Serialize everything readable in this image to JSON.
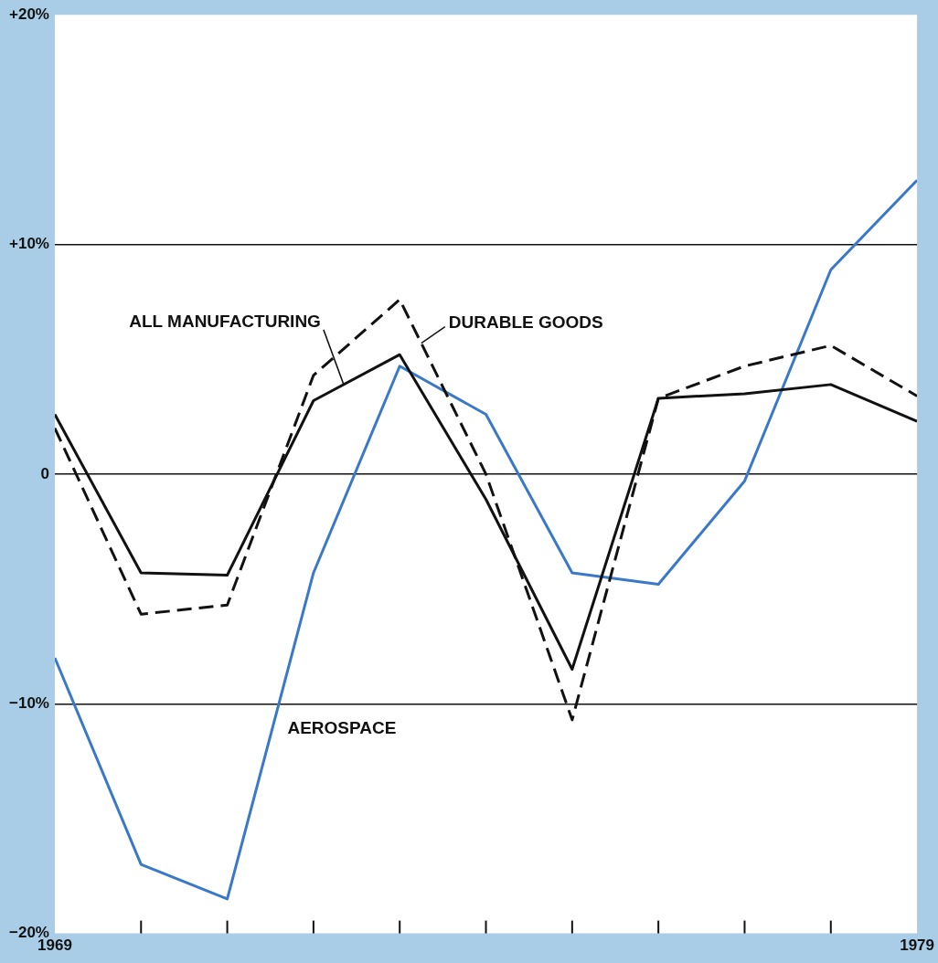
{
  "chart_data": {
    "type": "line",
    "x": [
      1969,
      1970,
      1971,
      1972,
      1973,
      1974,
      1975,
      1976,
      1977,
      1978,
      1979
    ],
    "xlim": [
      1969,
      1979
    ],
    "xticks": [
      1969,
      {
        "value": 1970,
        "label": null
      },
      {
        "value": 1971,
        "label": null
      },
      {
        "value": 1972,
        "label": null
      },
      {
        "value": 1973,
        "label": null
      },
      {
        "value": 1974,
        "label": null
      },
      {
        "value": 1975,
        "label": null
      },
      {
        "value": 1976,
        "label": null
      },
      {
        "value": 1977,
        "label": null
      },
      {
        "value": 1978,
        "label": null
      },
      1979
    ],
    "ylim": [
      -20,
      20
    ],
    "yticks": [
      {
        "value": -20,
        "label": "−20%"
      },
      {
        "value": -10,
        "label": "−10%"
      },
      0,
      {
        "value": 10,
        "label": "+10%"
      },
      {
        "value": 20,
        "label": "+20%"
      }
    ],
    "grid": "y",
    "legend": false,
    "marker": "none",
    "series": [
      {
        "name": "ALL MANUFACTURING",
        "color": "#111111",
        "line_style": "solid",
        "values": [
          2.6,
          -4.3,
          -4.4,
          3.2,
          5.2,
          -1.1,
          -8.5,
          3.3,
          3.5,
          3.9,
          2.3
        ]
      },
      {
        "name": "DURABLE GOODS",
        "color": "#111111",
        "line_style": "dashed",
        "values": [
          2.0,
          -6.1,
          -5.7,
          4.3,
          7.6,
          0,
          -10.7,
          3.3,
          4.7,
          5.6,
          3.4
        ]
      },
      {
        "name": "AEROSPACE",
        "color": "#3a78c9",
        "line_style": "solid",
        "values": [
          -8.0,
          -17.0,
          -18.5,
          -4.3,
          4.7,
          2.6,
          -4.3,
          -4.8,
          -0.3,
          8.9,
          12.8
        ]
      }
    ]
  }
}
